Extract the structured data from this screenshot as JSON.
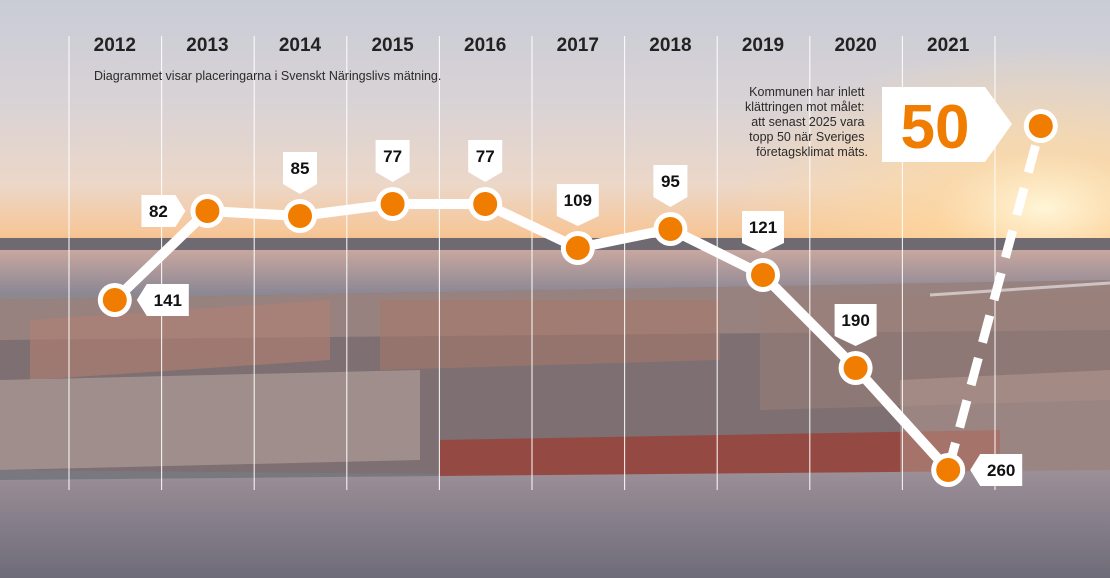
{
  "caption": "Diagrammet visar placeringarna i Svenskt Näringslivs mätning.",
  "note_lines": [
    "Kommunen har inlett",
    "klättringen mot målet:",
    "att senast 2025 vara",
    "topp 50 när Sveriges",
    "företagsklimat mäts."
  ],
  "goal_label": "50",
  "colors": {
    "accent": "#f07d00",
    "line": "#ffffff",
    "label_bg": "#ffffff",
    "text": "#222222"
  },
  "chart_data": {
    "type": "line",
    "title": "",
    "xlabel": "",
    "ylabel": "",
    "y_reversed": true,
    "x": [
      "2012",
      "2013",
      "2014",
      "2015",
      "2016",
      "2017",
      "2018",
      "2019",
      "2020",
      "2021"
    ],
    "series": [
      {
        "values": [
          141,
          82,
          85,
          77,
          77,
          109,
          95,
          121,
          190,
          260
        ],
        "labels": [
          "141",
          "82",
          "85",
          "77",
          "77",
          "109",
          "95",
          "121",
          "190",
          "260"
        ]
      }
    ],
    "target": {
      "value": 50,
      "label": "50"
    }
  }
}
